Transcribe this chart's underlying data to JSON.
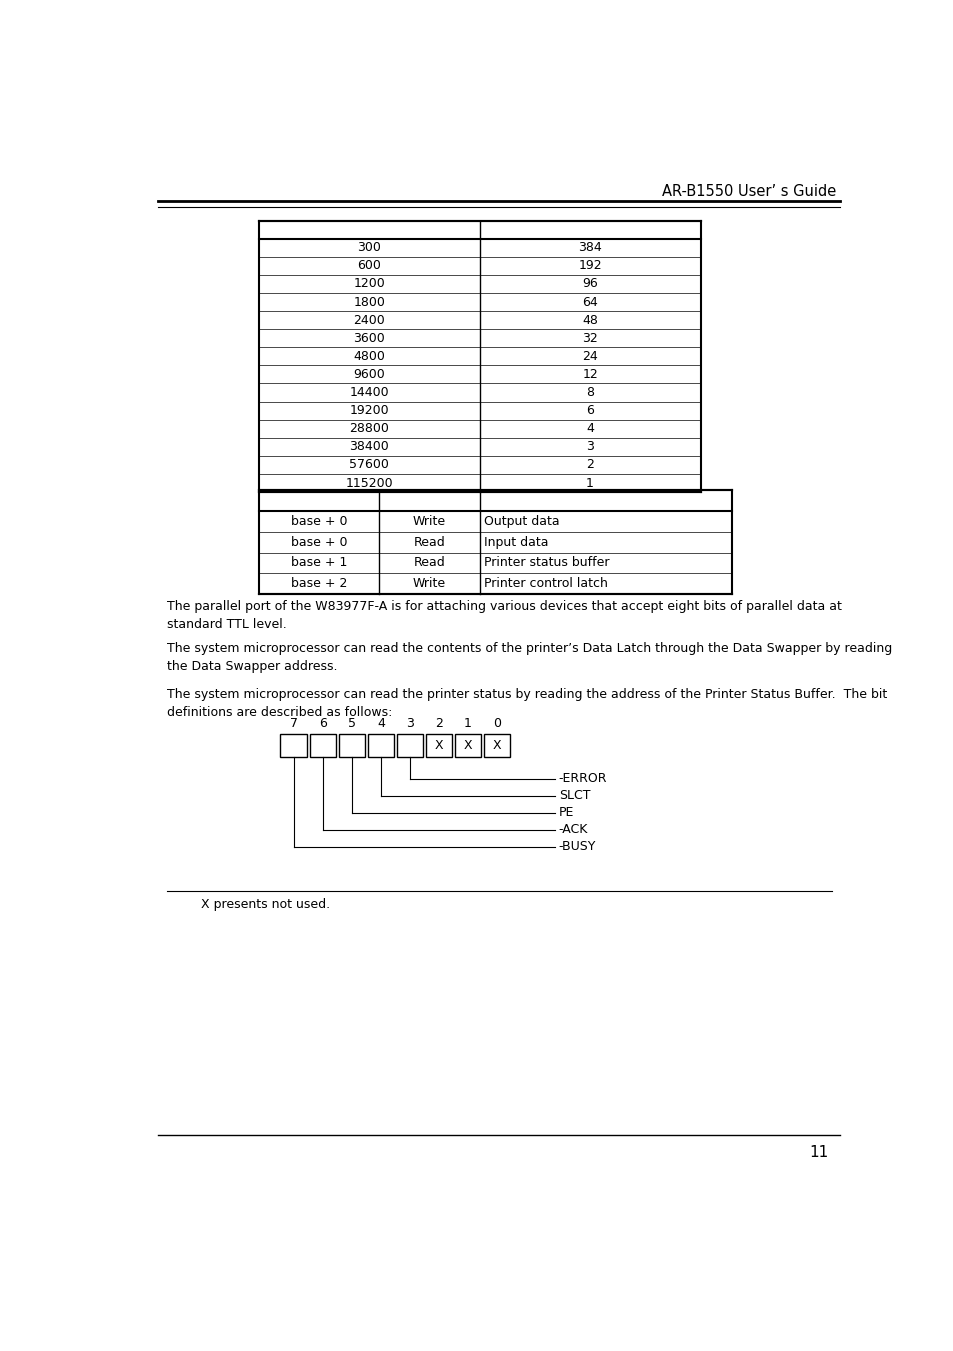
{
  "header_text": "AR-B1550 User’ s Guide",
  "table1": {
    "col1": [
      "300",
      "600",
      "1200",
      "1800",
      "2400",
      "3600",
      "4800",
      "9600",
      "14400",
      "19200",
      "28800",
      "38400",
      "57600",
      "115200"
    ],
    "col2": [
      "384",
      "192",
      "96",
      "64",
      "48",
      "32",
      "24",
      "12",
      "8",
      "6",
      "4",
      "3",
      "2",
      "1"
    ]
  },
  "table2": {
    "col1": [
      "base + 0",
      "base + 0",
      "base + 1",
      "base + 2"
    ],
    "col2": [
      "Write",
      "Read",
      "Read",
      "Write"
    ],
    "col3": [
      "Output data",
      "Input data",
      "Printer status buffer",
      "Printer control latch"
    ]
  },
  "para1": "The parallel port of the W83977F-A is for attaching various devices that accept eight bits of parallel data at\nstandard TTL level.",
  "para2": "The system microprocessor can read the contents of the printer’s Data Latch through the Data Swapper by reading\nthe Data Swapper address.",
  "para3": "The system microprocessor can read the printer status by reading the address of the Printer Status Buffer.  The bit\ndefinitions are described as follows:",
  "bit_labels": [
    "7",
    "6",
    "5",
    "4",
    "3",
    "2",
    "1",
    "0"
  ],
  "signals": [
    "-ERROR",
    "SLCT",
    "PE",
    "-ACK",
    "-BUSY"
  ],
  "footnote": "X presents not used.",
  "page_number": "11",
  "bg_color": "#ffffff",
  "text_color": "#000000",
  "font_size": 9,
  "header_font_size": 10.5
}
